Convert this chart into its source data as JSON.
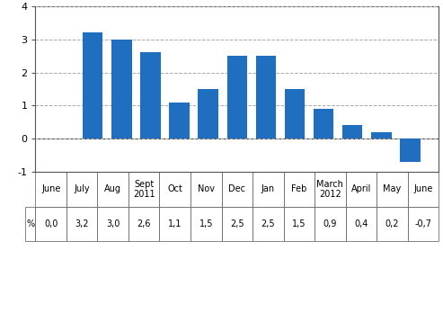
{
  "categories": [
    "June",
    "July",
    "Aug",
    "Sept\n2011",
    "Oct",
    "Nov",
    "Dec",
    "Jan",
    "Feb",
    "March\n2012",
    "April",
    "May",
    "June"
  ],
  "values": [
    0.0,
    3.2,
    3.0,
    2.6,
    1.1,
    1.5,
    2.5,
    2.5,
    1.5,
    0.9,
    0.4,
    0.2,
    -0.7
  ],
  "table_labels": [
    "0,0",
    "3,2",
    "3,0",
    "2,6",
    "1,1",
    "1,5",
    "2,5",
    "2,5",
    "1,5",
    "0,9",
    "0,4",
    "0,2",
    "-0,7"
  ],
  "bar_color": "#1F6EBF",
  "background_color": "#ffffff",
  "ylim": [
    -1.0,
    4.0
  ],
  "yticks": [
    -1,
    0,
    1,
    2,
    3,
    4
  ],
  "grid_color": "#aaaaaa",
  "table_row_label": "%",
  "line_color": "#333333",
  "border_color": "#555555"
}
